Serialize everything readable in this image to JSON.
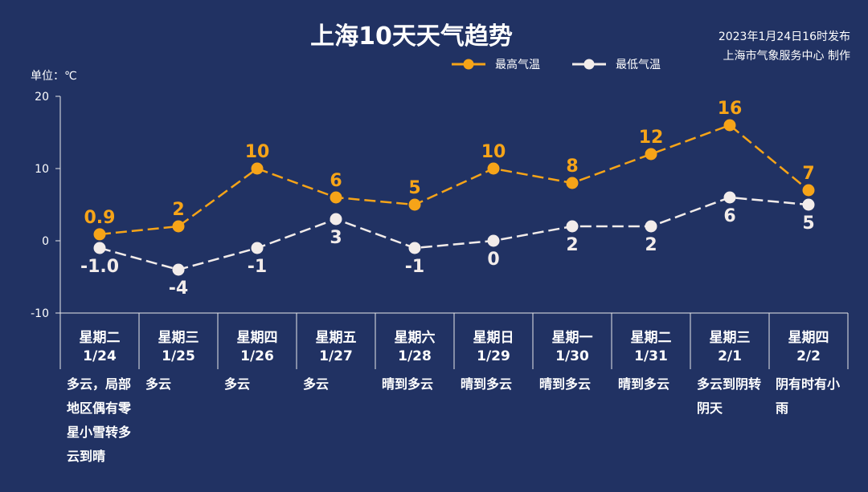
{
  "title": "上海10天天气趋势",
  "issue_time": "2023年1月24日16时发布",
  "issuer": "上海市气象服务中心 制作",
  "unit_label": "单位：℃",
  "colors": {
    "background": "#213263",
    "high": "#F6A418",
    "low": "#F2ECEA",
    "axis": "#E8E8E8"
  },
  "days": [
    {
      "weekday": "星期二",
      "date": "1/24",
      "weather": "多云，局部地区偶有零星小雪转多云到晴"
    },
    {
      "weekday": "星期三",
      "date": "1/25",
      "weather": "多云"
    },
    {
      "weekday": "星期四",
      "date": "1/26",
      "weather": "多云"
    },
    {
      "weekday": "星期五",
      "date": "1/27",
      "weather": "多云"
    },
    {
      "weekday": "星期六",
      "date": "1/28",
      "weather": "晴到多云"
    },
    {
      "weekday": "星期日",
      "date": "1/29",
      "weather": "晴到多云"
    },
    {
      "weekday": "星期一",
      "date": "1/30",
      "weather": "晴到多云"
    },
    {
      "weekday": "星期二",
      "date": "1/31",
      "weather": "晴到多云"
    },
    {
      "weekday": "星期三",
      "date": "2/1",
      "weather": "多云到阴转阴天"
    },
    {
      "weekday": "星期四",
      "date": "2/2",
      "weather": "阴有时有小雨"
    }
  ],
  "chart_data": {
    "type": "line",
    "title": "上海10天天气趋势",
    "ylabel": "单位：℃",
    "ylim": [
      -10,
      20
    ],
    "yticks": [
      -10,
      0,
      10,
      20
    ],
    "legend_position": "top-right",
    "categories": [
      "1/24",
      "1/25",
      "1/26",
      "1/27",
      "1/28",
      "1/29",
      "1/30",
      "1/31",
      "2/1",
      "2/2"
    ],
    "series": [
      {
        "name": "最高气温",
        "color": "#F6A418",
        "values": [
          0.9,
          2,
          10,
          6,
          5,
          10,
          8,
          12,
          16,
          7
        ],
        "labels": [
          "0.9",
          "2",
          "10",
          "6",
          "5",
          "10",
          "8",
          "12",
          "16",
          "7"
        ]
      },
      {
        "name": "最低气温",
        "color": "#F2ECEA",
        "values": [
          -1.0,
          -4,
          -1,
          3,
          -1,
          0,
          2,
          2,
          6,
          5
        ],
        "labels": [
          "-1.0",
          "-4",
          "-1",
          "3",
          "-1",
          "0",
          "2",
          "2",
          "6",
          "5"
        ]
      }
    ]
  }
}
